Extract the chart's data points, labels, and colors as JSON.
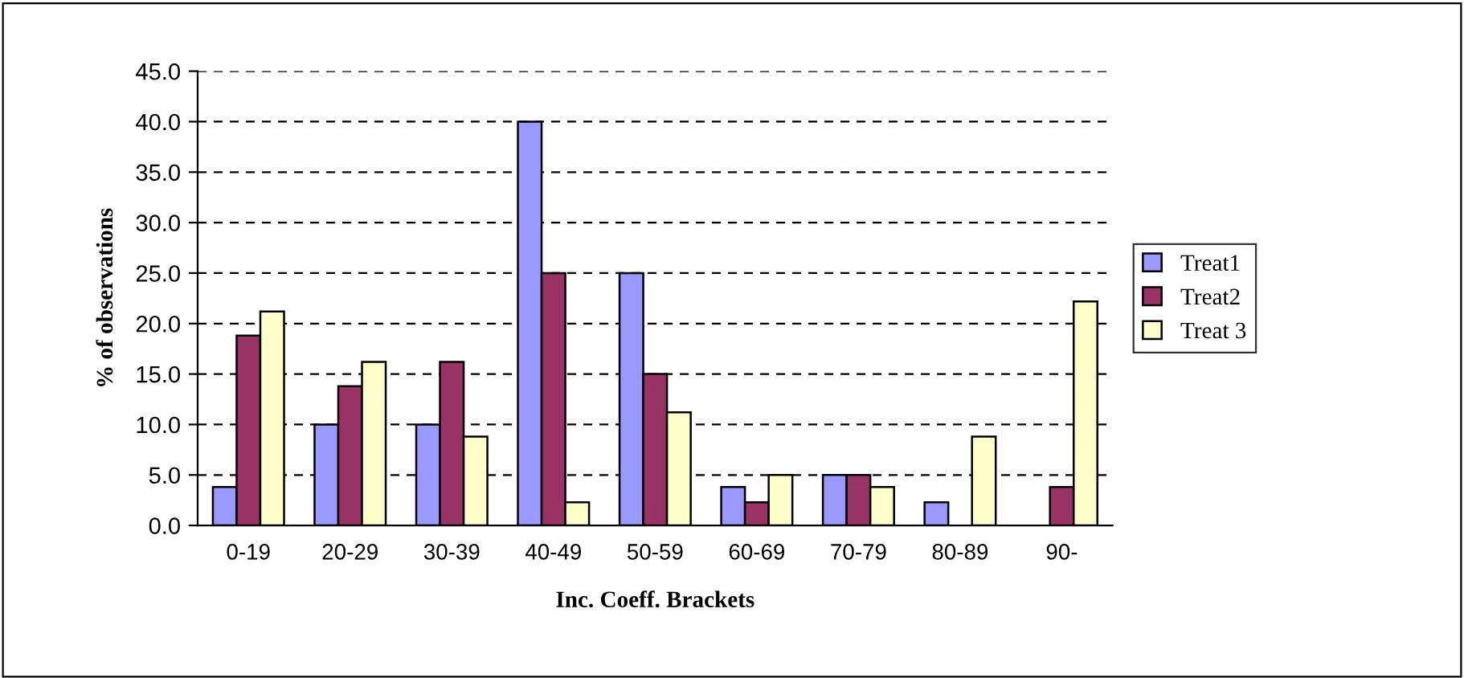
{
  "chart_data": {
    "type": "bar",
    "xlabel": "Inc. Coeff. Brackets",
    "ylabel": "% of observations",
    "categories": [
      "0-19",
      "20-29",
      "30-39",
      "40-49",
      "50-59",
      "60-69",
      "70-79",
      "80-89",
      "90-"
    ],
    "series": [
      {
        "name": "Treat1",
        "color": "#9999ff",
        "values": [
          3.8,
          10.0,
          10.0,
          40.0,
          25.0,
          3.8,
          5.0,
          2.3,
          null
        ]
      },
      {
        "name": "Treat2",
        "color": "#993366",
        "values": [
          18.8,
          13.8,
          16.2,
          25.0,
          15.0,
          2.3,
          5.0,
          null,
          3.8
        ]
      },
      {
        "name": "Treat 3",
        "color": "#ffffcc",
        "values": [
          21.2,
          16.2,
          8.8,
          2.3,
          11.2,
          5.0,
          3.8,
          8.8,
          22.2
        ]
      }
    ],
    "ylim": [
      0,
      45
    ],
    "yticks": [
      {
        "value": 0,
        "label": "0.0"
      },
      {
        "value": 5,
        "label": "5.0"
      },
      {
        "value": 10,
        "label": "10.0"
      },
      {
        "value": 15,
        "label": "15.0"
      },
      {
        "value": 20,
        "label": "20.0"
      },
      {
        "value": 25,
        "label": "25.0"
      },
      {
        "value": 30,
        "label": "30.0"
      },
      {
        "value": 35,
        "label": "35.0"
      },
      {
        "value": 40,
        "label": "40.0"
      },
      {
        "value": 45,
        "label": "45.0"
      }
    ],
    "grid": "y",
    "legend": "right"
  }
}
